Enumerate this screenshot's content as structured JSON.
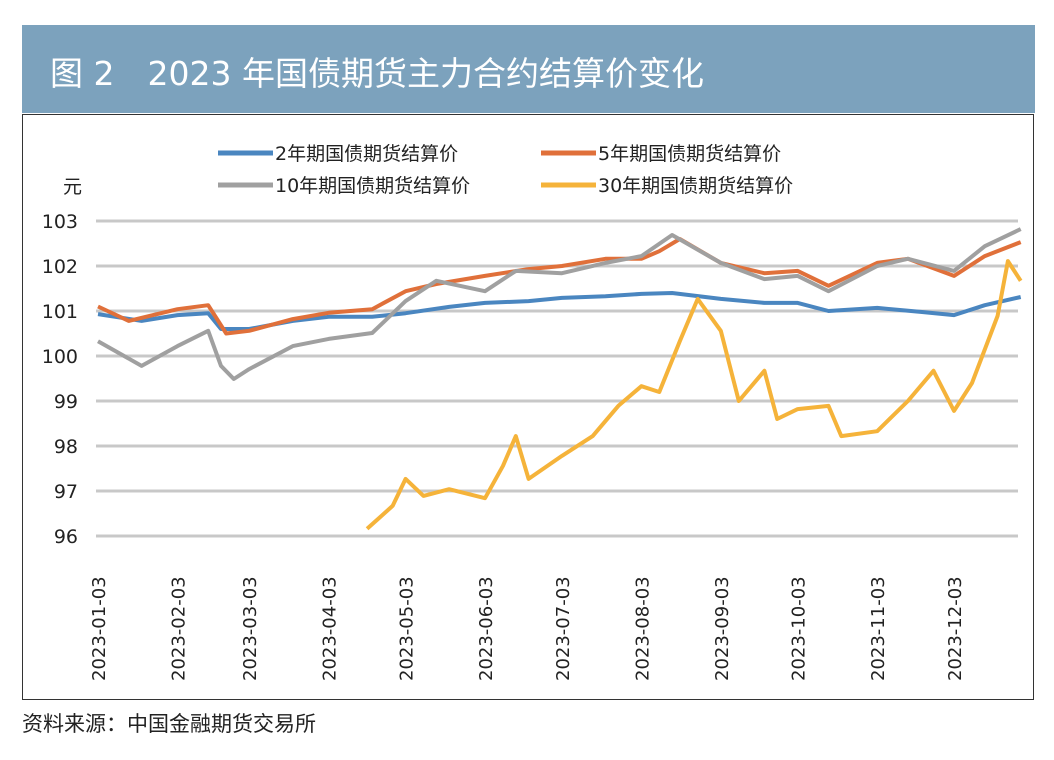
{
  "title": "图 2　2023 年国债期货主力合约结算价变化",
  "source": "资料来源：中国金融期货交易所",
  "chart_data": {
    "type": "line",
    "title": "",
    "ylabel": "元",
    "ylim": [
      96,
      103
    ],
    "yticks": [
      "96",
      "97",
      "98",
      "99",
      "100",
      "101",
      "102",
      "103"
    ],
    "xticks": [
      "2023-01-03",
      "2023-02-03",
      "2023-03-03",
      "2023-04-03",
      "2023-05-03",
      "2023-06-03",
      "2023-07-03",
      "2023-08-03",
      "2023-09-03",
      "2023-10-03",
      "2023-11-03",
      "2023-12-03"
    ],
    "grid": true,
    "legend_position": "top",
    "series": [
      {
        "name": "2年期国债期货结算价",
        "color": "#4a86c0",
        "points": [
          [
            "2023-01-03",
            100.93
          ],
          [
            "2023-01-20",
            100.78
          ],
          [
            "2023-02-03",
            100.91
          ],
          [
            "2023-02-15",
            100.95
          ],
          [
            "2023-02-20",
            100.6
          ],
          [
            "2023-03-03",
            100.6
          ],
          [
            "2023-03-20",
            100.78
          ],
          [
            "2023-04-03",
            100.87
          ],
          [
            "2023-04-20",
            100.87
          ],
          [
            "2023-05-03",
            100.95
          ],
          [
            "2023-05-20",
            101.09
          ],
          [
            "2023-06-03",
            101.18
          ],
          [
            "2023-06-20",
            101.22
          ],
          [
            "2023-07-03",
            101.29
          ],
          [
            "2023-07-20",
            101.33
          ],
          [
            "2023-08-03",
            101.38
          ],
          [
            "2023-08-15",
            101.4
          ],
          [
            "2023-09-03",
            101.27
          ],
          [
            "2023-09-20",
            101.18
          ],
          [
            "2023-10-03",
            101.18
          ],
          [
            "2023-10-15",
            101.0
          ],
          [
            "2023-11-03",
            101.07
          ],
          [
            "2023-11-20",
            100.98
          ],
          [
            "2023-12-03",
            100.91
          ],
          [
            "2023-12-15",
            101.13
          ],
          [
            "2023-12-29",
            101.31
          ]
        ]
      },
      {
        "name": "5年期国债期货结算价",
        "color": "#e0703a",
        "points": [
          [
            "2023-01-03",
            101.1
          ],
          [
            "2023-01-15",
            100.78
          ],
          [
            "2023-02-03",
            101.04
          ],
          [
            "2023-02-15",
            101.13
          ],
          [
            "2023-02-22",
            100.5
          ],
          [
            "2023-03-03",
            100.56
          ],
          [
            "2023-03-20",
            100.82
          ],
          [
            "2023-04-03",
            100.96
          ],
          [
            "2023-04-20",
            101.04
          ],
          [
            "2023-05-03",
            101.44
          ],
          [
            "2023-05-15",
            101.6
          ],
          [
            "2023-06-03",
            101.78
          ],
          [
            "2023-06-20",
            101.93
          ],
          [
            "2023-07-03",
            102.0
          ],
          [
            "2023-07-20",
            102.16
          ],
          [
            "2023-08-03",
            102.16
          ],
          [
            "2023-08-10",
            102.33
          ],
          [
            "2023-08-18",
            102.6
          ],
          [
            "2023-09-03",
            102.07
          ],
          [
            "2023-09-20",
            101.84
          ],
          [
            "2023-10-03",
            101.89
          ],
          [
            "2023-10-15",
            101.56
          ],
          [
            "2023-11-03",
            102.07
          ],
          [
            "2023-11-15",
            102.16
          ],
          [
            "2023-12-03",
            101.78
          ],
          [
            "2023-12-15",
            102.22
          ],
          [
            "2023-12-29",
            102.53
          ]
        ]
      },
      {
        "name": "10年期国债期货结算价",
        "color": "#a0a0a0",
        "points": [
          [
            "2023-01-03",
            100.33
          ],
          [
            "2023-01-20",
            99.78
          ],
          [
            "2023-02-03",
            100.22
          ],
          [
            "2023-02-15",
            100.56
          ],
          [
            "2023-02-20",
            99.78
          ],
          [
            "2023-02-25",
            99.49
          ],
          [
            "2023-03-03",
            99.71
          ],
          [
            "2023-03-20",
            100.22
          ],
          [
            "2023-04-03",
            100.38
          ],
          [
            "2023-04-20",
            100.51
          ],
          [
            "2023-05-03",
            101.22
          ],
          [
            "2023-05-15",
            101.67
          ],
          [
            "2023-06-03",
            101.44
          ],
          [
            "2023-06-15",
            101.89
          ],
          [
            "2023-07-03",
            101.84
          ],
          [
            "2023-07-20",
            102.07
          ],
          [
            "2023-08-03",
            102.22
          ],
          [
            "2023-08-15",
            102.69
          ],
          [
            "2023-09-03",
            102.07
          ],
          [
            "2023-09-20",
            101.71
          ],
          [
            "2023-10-03",
            101.78
          ],
          [
            "2023-10-15",
            101.44
          ],
          [
            "2023-11-03",
            102.0
          ],
          [
            "2023-11-15",
            102.16
          ],
          [
            "2023-12-03",
            101.89
          ],
          [
            "2023-12-15",
            102.44
          ],
          [
            "2023-12-29",
            102.82
          ]
        ]
      },
      {
        "name": "30年期国债期货结算价",
        "color": "#f5b33a",
        "points": [
          [
            "2023-04-18",
            96.16
          ],
          [
            "2023-04-28",
            96.67
          ],
          [
            "2023-05-03",
            97.27
          ],
          [
            "2023-05-10",
            96.89
          ],
          [
            "2023-05-20",
            97.04
          ],
          [
            "2023-06-03",
            96.84
          ],
          [
            "2023-06-10",
            97.56
          ],
          [
            "2023-06-15",
            98.22
          ],
          [
            "2023-06-20",
            97.27
          ],
          [
            "2023-07-03",
            97.78
          ],
          [
            "2023-07-15",
            98.22
          ],
          [
            "2023-07-25",
            98.89
          ],
          [
            "2023-08-03",
            99.33
          ],
          [
            "2023-08-10",
            99.2
          ],
          [
            "2023-08-18",
            100.33
          ],
          [
            "2023-08-25",
            101.27
          ],
          [
            "2023-09-03",
            100.56
          ],
          [
            "2023-09-10",
            99.0
          ],
          [
            "2023-09-20",
            99.67
          ],
          [
            "2023-09-25",
            98.6
          ],
          [
            "2023-10-03",
            98.82
          ],
          [
            "2023-10-15",
            98.89
          ],
          [
            "2023-10-20",
            98.22
          ],
          [
            "2023-11-03",
            98.33
          ],
          [
            "2023-11-15",
            99.0
          ],
          [
            "2023-11-25",
            99.67
          ],
          [
            "2023-12-03",
            98.78
          ],
          [
            "2023-12-10",
            99.4
          ],
          [
            "2023-12-20",
            100.89
          ],
          [
            "2023-12-24",
            102.11
          ],
          [
            "2023-12-29",
            101.67
          ]
        ]
      }
    ]
  }
}
